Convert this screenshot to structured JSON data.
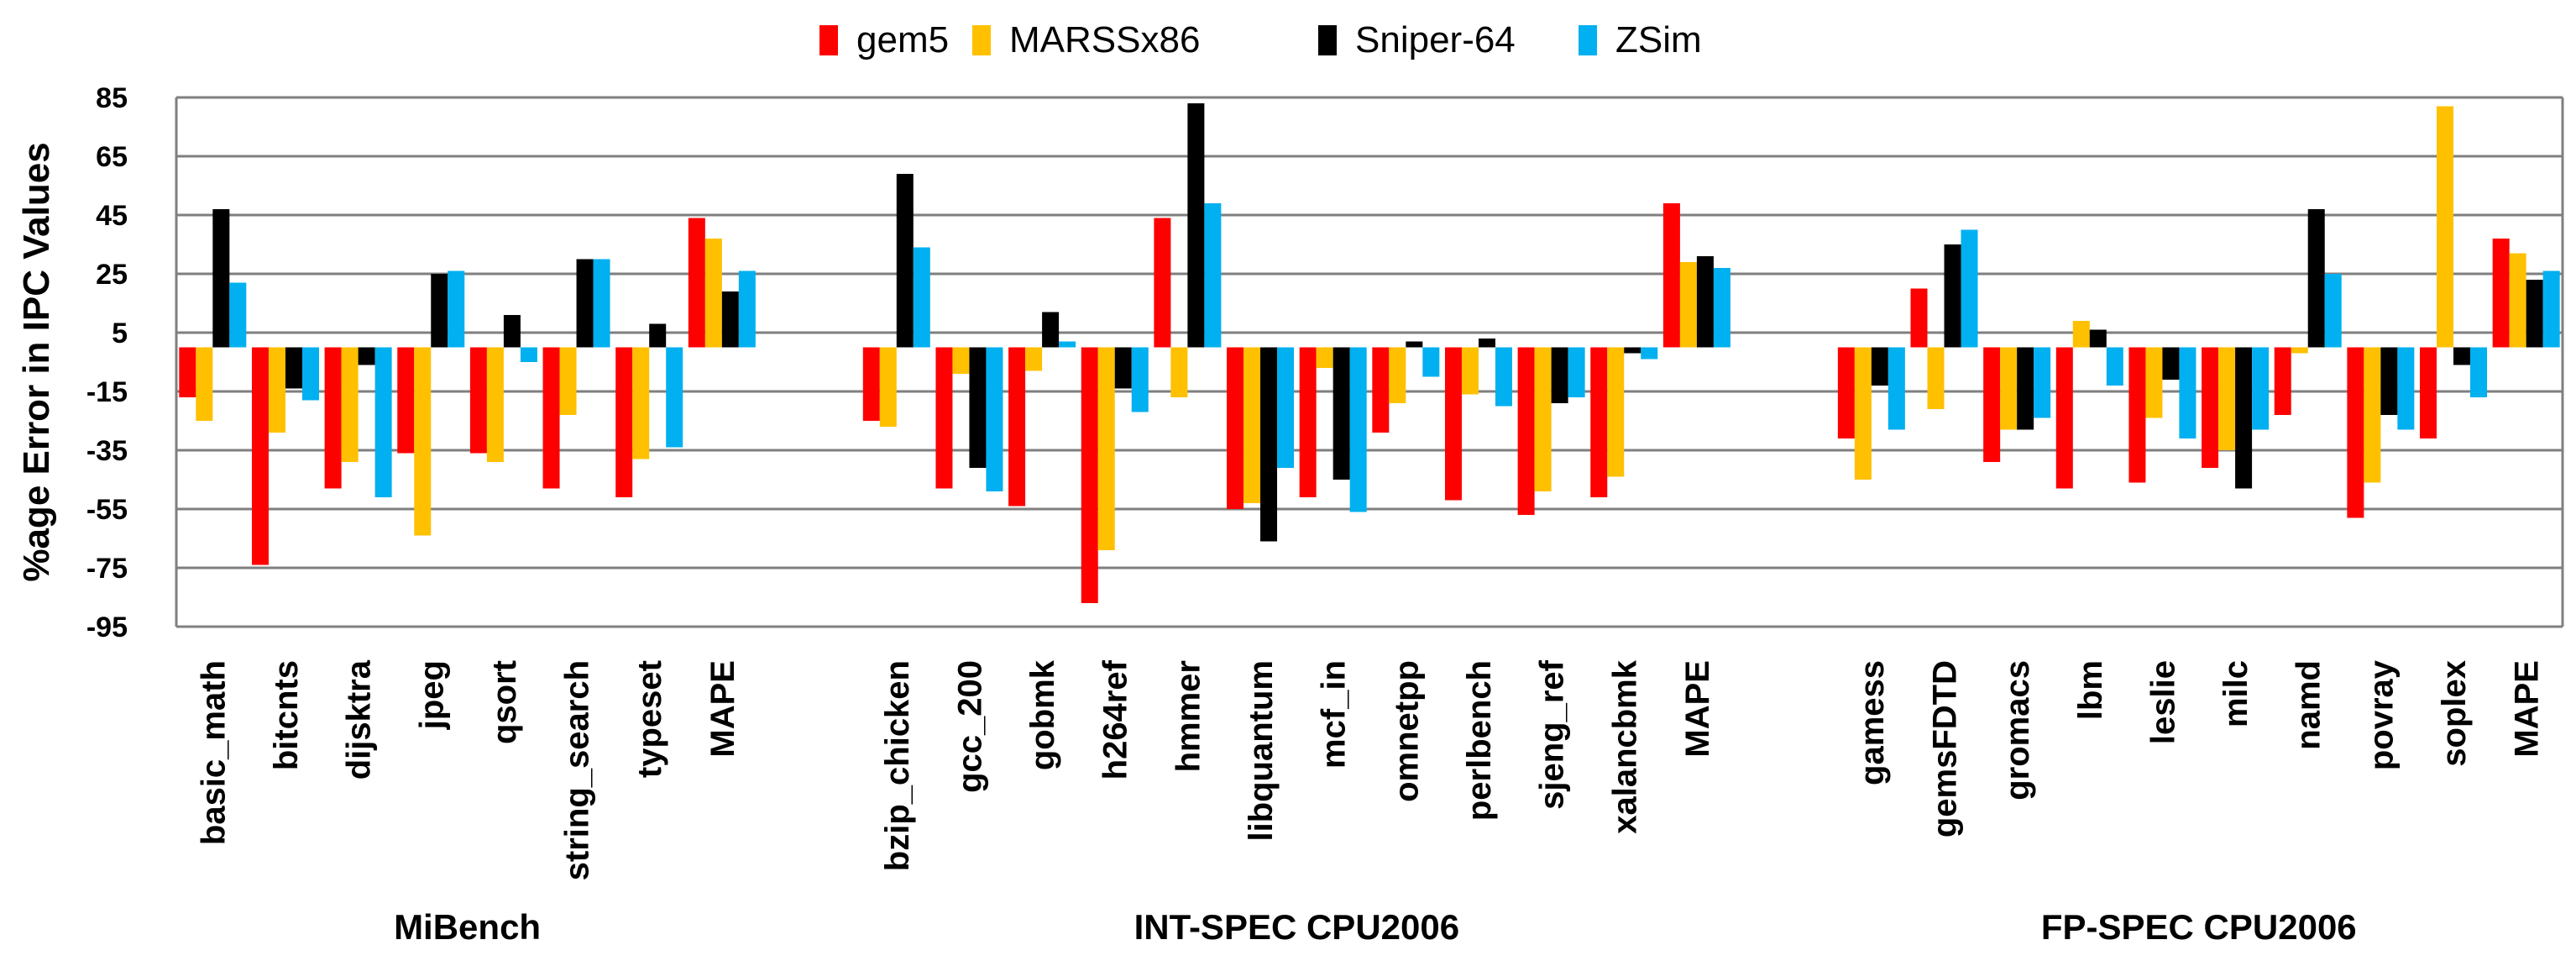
{
  "chart_data": {
    "type": "bar",
    "title": "",
    "xlabel": "",
    "ylabel": "%age Error in IPC Values",
    "ylim": [
      -95,
      85
    ],
    "yticks": [
      85,
      65,
      45,
      25,
      5,
      -15,
      -35,
      -55,
      -75,
      -95
    ],
    "grid": true,
    "legend_position": "top-center",
    "series": [
      {
        "name": "gem5",
        "color": "#FF0000"
      },
      {
        "name": "MARSSx86",
        "color": "#FFC000"
      },
      {
        "name": "Sniper-64",
        "color": "#000000"
      },
      {
        "name": "ZSim",
        "color": "#00B0F0"
      }
    ],
    "groups": [
      {
        "label": "MiBench",
        "categories": [
          {
            "name": "basic_math",
            "values": [
              -17,
              -25,
              47,
              22
            ]
          },
          {
            "name": "bitcnts",
            "values": [
              -74,
              -29,
              -14,
              -18
            ]
          },
          {
            "name": "dijsktra",
            "values": [
              -48,
              -39,
              -6,
              -51
            ]
          },
          {
            "name": "jpeg",
            "values": [
              -36,
              -64,
              25,
              26
            ]
          },
          {
            "name": "qsort",
            "values": [
              -36,
              -39,
              11,
              -5
            ]
          },
          {
            "name": "string_search",
            "values": [
              -48,
              -23,
              30,
              30
            ]
          },
          {
            "name": "typeset",
            "values": [
              -51,
              -38,
              8,
              -34
            ]
          },
          {
            "name": "MAPE",
            "values": [
              44,
              37,
              19,
              26
            ]
          }
        ]
      },
      {
        "label": "INT-SPEC CPU2006",
        "categories": [
          {
            "name": "bzip_chicken",
            "values": [
              -25,
              -27,
              59,
              34
            ]
          },
          {
            "name": "gcc_200",
            "values": [
              -48,
              -9,
              -41,
              -49
            ]
          },
          {
            "name": "gobmk",
            "values": [
              -54,
              -8,
              12,
              2
            ]
          },
          {
            "name": "h264ref",
            "values": [
              -87,
              -69,
              -14,
              -22
            ]
          },
          {
            "name": "hmmer",
            "values": [
              44,
              -17,
              83,
              49
            ]
          },
          {
            "name": "libquantum",
            "values": [
              -55,
              -53,
              -66,
              -41
            ]
          },
          {
            "name": "mcf_in",
            "values": [
              -51,
              -7,
              -45,
              -56
            ]
          },
          {
            "name": "omnetpp",
            "values": [
              -29,
              -19,
              2,
              -10
            ]
          },
          {
            "name": "perlbench",
            "values": [
              -52,
              -16,
              3,
              -20
            ]
          },
          {
            "name": "sjeng_ref",
            "values": [
              -57,
              -49,
              -19,
              -17
            ]
          },
          {
            "name": "xalancbmk",
            "values": [
              -51,
              -44,
              -2,
              -4
            ]
          },
          {
            "name": "MAPE",
            "values": [
              49,
              29,
              31,
              27
            ]
          }
        ]
      },
      {
        "label": "FP-SPEC CPU2006",
        "categories": [
          {
            "name": "gamess",
            "values": [
              -31,
              -45,
              -13,
              -28
            ]
          },
          {
            "name": "gemsFDTD",
            "values": [
              20,
              -21,
              35,
              40
            ]
          },
          {
            "name": "gromacs",
            "values": [
              -39,
              -28,
              -28,
              -24
            ]
          },
          {
            "name": "lbm",
            "values": [
              -48,
              9,
              6,
              -13
            ]
          },
          {
            "name": "leslie",
            "values": [
              -46,
              -24,
              -11,
              -31
            ]
          },
          {
            "name": "milc",
            "values": [
              -41,
              -35,
              -48,
              -28
            ]
          },
          {
            "name": "namd",
            "values": [
              -23,
              -2,
              47,
              25
            ]
          },
          {
            "name": "povray",
            "values": [
              -58,
              -46,
              -23,
              -28
            ]
          },
          {
            "name": "soplex",
            "values": [
              -31,
              82,
              -6,
              -17
            ]
          },
          {
            "name": "MAPE",
            "values": [
              37,
              32,
              23,
              26
            ]
          }
        ]
      }
    ]
  }
}
